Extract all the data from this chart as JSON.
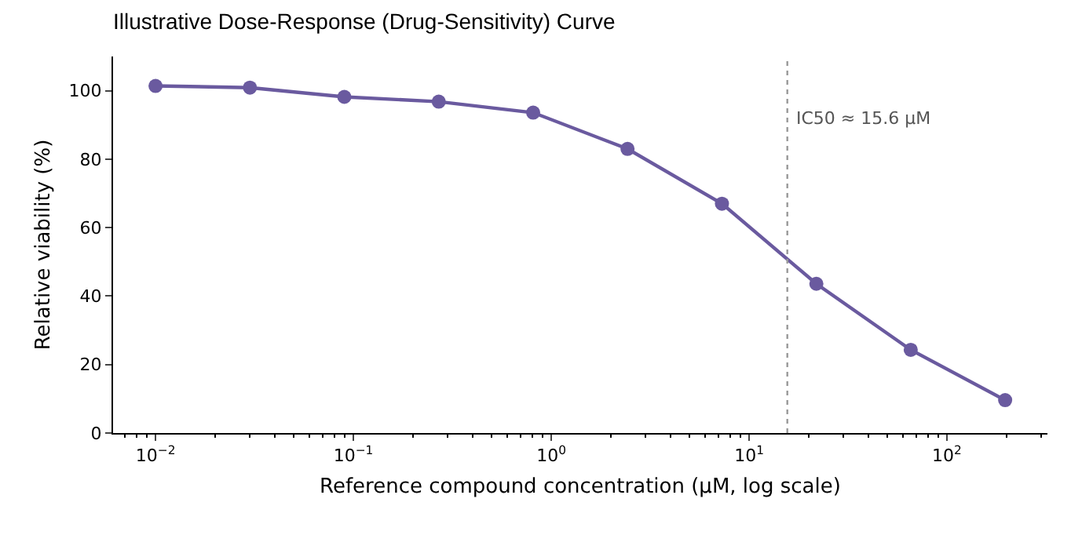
{
  "chart_data": {
    "type": "line",
    "title": "Illustrative Dose-Response (Drug-Sensitivity) Curve",
    "xlabel": "Reference compound concentration (µM, log scale)",
    "ylabel": "Relative viability (%)",
    "x": [
      0.01,
      0.03,
      0.09,
      0.27,
      0.81,
      2.43,
      7.29,
      21.87,
      65.61,
      196.83
    ],
    "series": [
      {
        "color": "#6a5a9f",
        "values": [
          101.4,
          100.9,
          98.2,
          96.8,
          93.6,
          83,
          67,
          43.6,
          24.3,
          9.6
        ]
      }
    ],
    "log": "x",
    "xlim": [
      0.0061,
      322
    ],
    "xticks": [
      {
        "value": 0.01,
        "label": "10$^{−2}$"
      },
      {
        "value": 0.1,
        "label": "10$^{−1}$"
      },
      {
        "value": 1,
        "label": "10$^{0}$"
      },
      {
        "value": 10,
        "label": "10$^{1}$"
      },
      {
        "value": 100,
        "label": "10$^{2}$"
      }
    ],
    "ylim": [
      0,
      110
    ],
    "yticks": [
      0,
      20,
      40,
      60,
      80,
      100
    ],
    "ref_lines": [
      {
        "axis": "x",
        "value": 15.6,
        "label": "IC50 ≈ 15.6 µM",
        "color": "#999999",
        "line_style": "dotted"
      }
    ],
    "marker": "circle",
    "line_style": "solid"
  }
}
